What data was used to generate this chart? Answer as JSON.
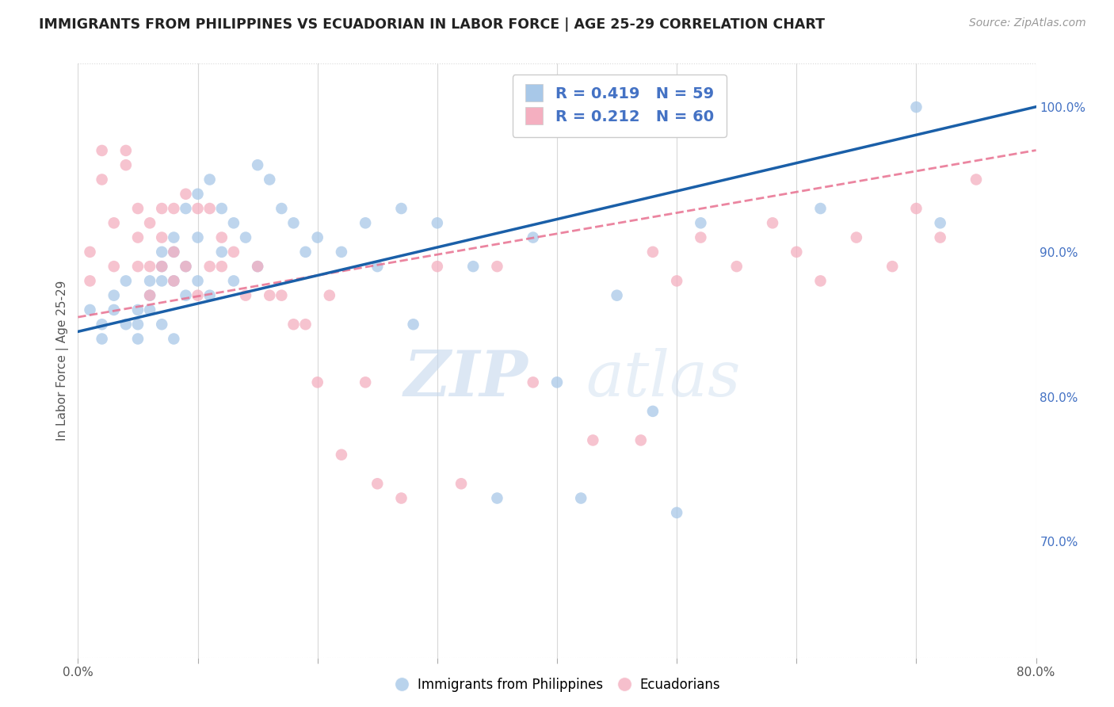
{
  "title": "IMMIGRANTS FROM PHILIPPINES VS ECUADORIAN IN LABOR FORCE | AGE 25-29 CORRELATION CHART",
  "source": "Source: ZipAtlas.com",
  "ylabel": "In Labor Force | Age 25-29",
  "xlim": [
    0.0,
    0.8
  ],
  "ylim": [
    0.62,
    1.03
  ],
  "xticks": [
    0.0,
    0.1,
    0.2,
    0.3,
    0.4,
    0.5,
    0.6,
    0.7,
    0.8
  ],
  "xticklabels": [
    "0.0%",
    "",
    "",
    "",
    "",
    "",
    "",
    "",
    "80.0%"
  ],
  "yticks_right": [
    0.7,
    0.8,
    0.9,
    1.0
  ],
  "ytick_right_labels": [
    "70.0%",
    "80.0%",
    "90.0%",
    "100.0%"
  ],
  "blue_color": "#a8c8e8",
  "pink_color": "#f4afc0",
  "blue_line_color": "#1a5fa8",
  "pink_line_color": "#e87090",
  "legend_R_blue": "R = 0.419",
  "legend_N_blue": "N = 59",
  "legend_R_pink": "R = 0.212",
  "legend_N_pink": "N = 60",
  "blue_scatter_x": [
    0.01,
    0.02,
    0.02,
    0.03,
    0.03,
    0.04,
    0.04,
    0.05,
    0.05,
    0.05,
    0.06,
    0.06,
    0.06,
    0.07,
    0.07,
    0.07,
    0.07,
    0.08,
    0.08,
    0.08,
    0.08,
    0.09,
    0.09,
    0.09,
    0.1,
    0.1,
    0.1,
    0.11,
    0.11,
    0.12,
    0.12,
    0.13,
    0.13,
    0.14,
    0.15,
    0.15,
    0.16,
    0.17,
    0.18,
    0.19,
    0.2,
    0.22,
    0.24,
    0.25,
    0.27,
    0.28,
    0.3,
    0.33,
    0.35,
    0.38,
    0.4,
    0.42,
    0.45,
    0.48,
    0.5,
    0.52,
    0.62,
    0.7,
    0.72
  ],
  "blue_scatter_y": [
    0.86,
    0.85,
    0.84,
    0.87,
    0.86,
    0.88,
    0.85,
    0.86,
    0.85,
    0.84,
    0.88,
    0.87,
    0.86,
    0.9,
    0.89,
    0.88,
    0.85,
    0.91,
    0.9,
    0.88,
    0.84,
    0.93,
    0.89,
    0.87,
    0.94,
    0.91,
    0.88,
    0.95,
    0.87,
    0.93,
    0.9,
    0.92,
    0.88,
    0.91,
    0.96,
    0.89,
    0.95,
    0.93,
    0.92,
    0.9,
    0.91,
    0.9,
    0.92,
    0.89,
    0.93,
    0.85,
    0.92,
    0.89,
    0.73,
    0.91,
    0.81,
    0.73,
    0.87,
    0.79,
    0.72,
    0.92,
    0.93,
    1.0,
    0.92
  ],
  "pink_scatter_x": [
    0.01,
    0.01,
    0.02,
    0.02,
    0.03,
    0.03,
    0.04,
    0.04,
    0.05,
    0.05,
    0.05,
    0.06,
    0.06,
    0.06,
    0.07,
    0.07,
    0.07,
    0.08,
    0.08,
    0.08,
    0.09,
    0.09,
    0.1,
    0.1,
    0.11,
    0.11,
    0.12,
    0.12,
    0.13,
    0.14,
    0.15,
    0.16,
    0.17,
    0.18,
    0.19,
    0.2,
    0.21,
    0.22,
    0.24,
    0.25,
    0.27,
    0.3,
    0.32,
    0.35,
    0.38,
    0.43,
    0.45,
    0.47,
    0.48,
    0.5,
    0.52,
    0.55,
    0.58,
    0.6,
    0.62,
    0.65,
    0.68,
    0.7,
    0.72,
    0.75
  ],
  "pink_scatter_y": [
    0.9,
    0.88,
    0.97,
    0.95,
    0.92,
    0.89,
    0.97,
    0.96,
    0.93,
    0.91,
    0.89,
    0.92,
    0.89,
    0.87,
    0.93,
    0.91,
    0.89,
    0.93,
    0.9,
    0.88,
    0.94,
    0.89,
    0.93,
    0.87,
    0.93,
    0.89,
    0.91,
    0.89,
    0.9,
    0.87,
    0.89,
    0.87,
    0.87,
    0.85,
    0.85,
    0.81,
    0.87,
    0.76,
    0.81,
    0.74,
    0.73,
    0.89,
    0.74,
    0.89,
    0.81,
    0.77,
    1.0,
    0.77,
    0.9,
    0.88,
    0.91,
    0.89,
    0.92,
    0.9,
    0.88,
    0.91,
    0.89,
    0.93,
    0.91,
    0.95
  ],
  "watermark_zip": "ZIP",
  "watermark_atlas": "atlas",
  "background_color": "#ffffff",
  "grid_color": "#d8d8d8",
  "axis_color": "#4472c4"
}
